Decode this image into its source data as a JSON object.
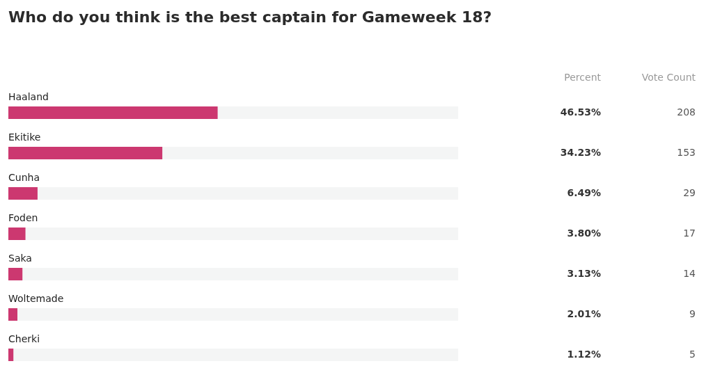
{
  "chart_data": {
    "type": "bar",
    "orientation": "horizontal",
    "title": "Who do you think is the best captain for Gameweek 18?",
    "categories": [
      "Haaland",
      "Ekitike",
      "Cunha",
      "Foden",
      "Saka",
      "Woltemade",
      "Cherki"
    ],
    "xlim": [
      0,
      100
    ],
    "tick_labels": false,
    "series": [
      {
        "name": "Percent",
        "color": "#cc3870",
        "values": [
          46.53,
          34.23,
          6.49,
          3.8,
          3.13,
          2.01,
          1.12
        ],
        "value_labels": [
          "46.53%",
          "34.23%",
          "6.49%",
          "3.80%",
          "3.13%",
          "2.01%",
          "1.12%"
        ]
      }
    ],
    "annotations": [
      "Vote Count",
      "208",
      "153",
      "29",
      "17",
      "14",
      "9",
      "5"
    ]
  }
}
